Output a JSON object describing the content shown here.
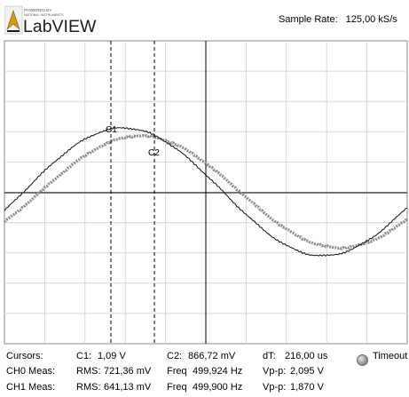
{
  "header": {
    "brand_small": "POWERED BY",
    "brand_tiny": "NATIONAL INSTRUMENTS",
    "brand_name": "LabVIEW",
    "sample_rate_label": "Sample Rate:",
    "sample_rate_value": "125,00 kS/s"
  },
  "graph": {
    "cursor_labels": [
      "C1",
      "C2"
    ],
    "colors": {
      "background": "#ffffff",
      "grid": "#d7d7d7",
      "axis": "#000000",
      "trace_ch0": "#111111",
      "trace_ch1": "#8c8c8c"
    }
  },
  "readouts": {
    "cursors": {
      "label": "Cursors:",
      "c1_label": "C1:",
      "c1_value": "1,09 V",
      "c2_label": "C2:",
      "c2_value": "866,72 mV",
      "dt_label": "dT:",
      "dt_value": "216,00 us",
      "timeout_label": "Timeout",
      "timeout_icon": "led-indicator-icon"
    },
    "ch0": {
      "label": "CH0 Meas:",
      "rms_label": "RMS:",
      "rms_value": "721,36 mV",
      "freq_label": "Freq",
      "freq_value": "499,924 Hz",
      "vpp_label": "Vp-p:",
      "vpp_value": "2,095 V"
    },
    "ch1": {
      "label": "CH1 Meas:",
      "rms_label": "RMS:",
      "rms_value": "641,13 mV",
      "freq_label": "Freq",
      "freq_value": "499,900 Hz",
      "vpp_label": "Vp-p:",
      "vpp_value": "1,870 V"
    }
  }
}
